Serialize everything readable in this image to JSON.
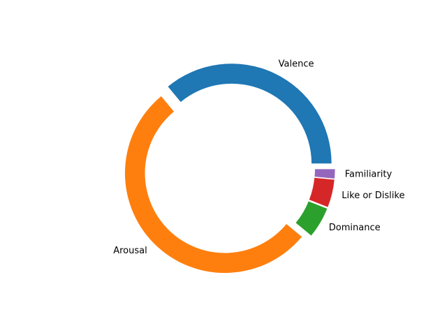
{
  "chart_data": {
    "type": "pie",
    "style": "donut",
    "title": "",
    "start_angle_deg": 0,
    "direction": "counterclockwise",
    "exploded": true,
    "hole_fraction": 0.8,
    "slices": [
      {
        "label": "Valence",
        "value": 36.0,
        "color": "#1f77b4"
      },
      {
        "label": "Arousal",
        "value": 53.0,
        "color": "#ff7f0e"
      },
      {
        "label": "Dominance",
        "value": 5.0,
        "color": "#2ca02c"
      },
      {
        "label": "Like or Dislike",
        "value": 4.5,
        "color": "#d62728"
      },
      {
        "label": "Familiarity",
        "value": 1.5,
        "color": "#9467bd"
      }
    ]
  }
}
